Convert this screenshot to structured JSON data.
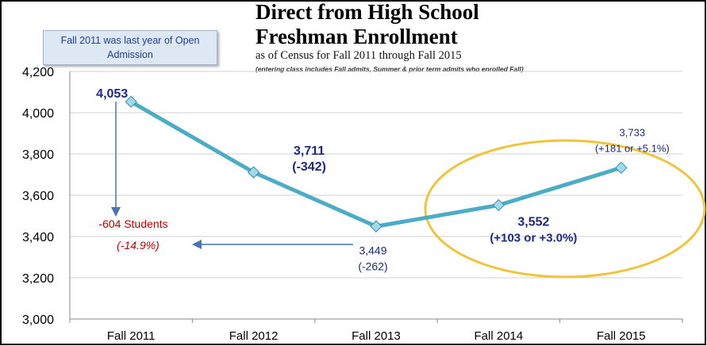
{
  "title_line1": "Direct from High School",
  "title_line2": "Freshman Enrollment",
  "subtitle": "as of Census for Fall 2011 through Fall 2015",
  "note": "(entering class includes Fall admits, Summer & prior term admits who enrolled Fall)",
  "callout_text": "Fall 2011 was last year of Open Admission",
  "colors": {
    "line": "#4bacc6",
    "marker": "#9fd9ea",
    "label": "#1c2a86",
    "decline": "#c00000",
    "ellipse": "#f0c43a",
    "arrow": "#4a74b6",
    "frame": "#000000"
  },
  "chart_data": {
    "type": "line",
    "categories": [
      "Fall 2011",
      "Fall 2012",
      "Fall 2013",
      "Fall 2014",
      "Fall 2015"
    ],
    "values": [
      4053,
      3711,
      3449,
      3552,
      3733
    ],
    "ylim": [
      3000,
      4200
    ],
    "yticks": [
      3000,
      3200,
      3400,
      3600,
      3800,
      4000,
      4200
    ],
    "ytick_labels": [
      "3,000",
      "3,200",
      "3,400",
      "3,600",
      "3,800",
      "4,000",
      "4,200"
    ],
    "grid": true,
    "point_labels": [
      [
        "4,053"
      ],
      [
        "3,711",
        "(-342)"
      ],
      [
        "3,449",
        "(-262)"
      ],
      [
        "3,552",
        "(+103 or +3.0%)"
      ],
      [
        "3,733",
        "(+181 or +5.1%)"
      ]
    ],
    "decline_label": "-604 Students",
    "decline_pct": "(-14.9%)"
  }
}
